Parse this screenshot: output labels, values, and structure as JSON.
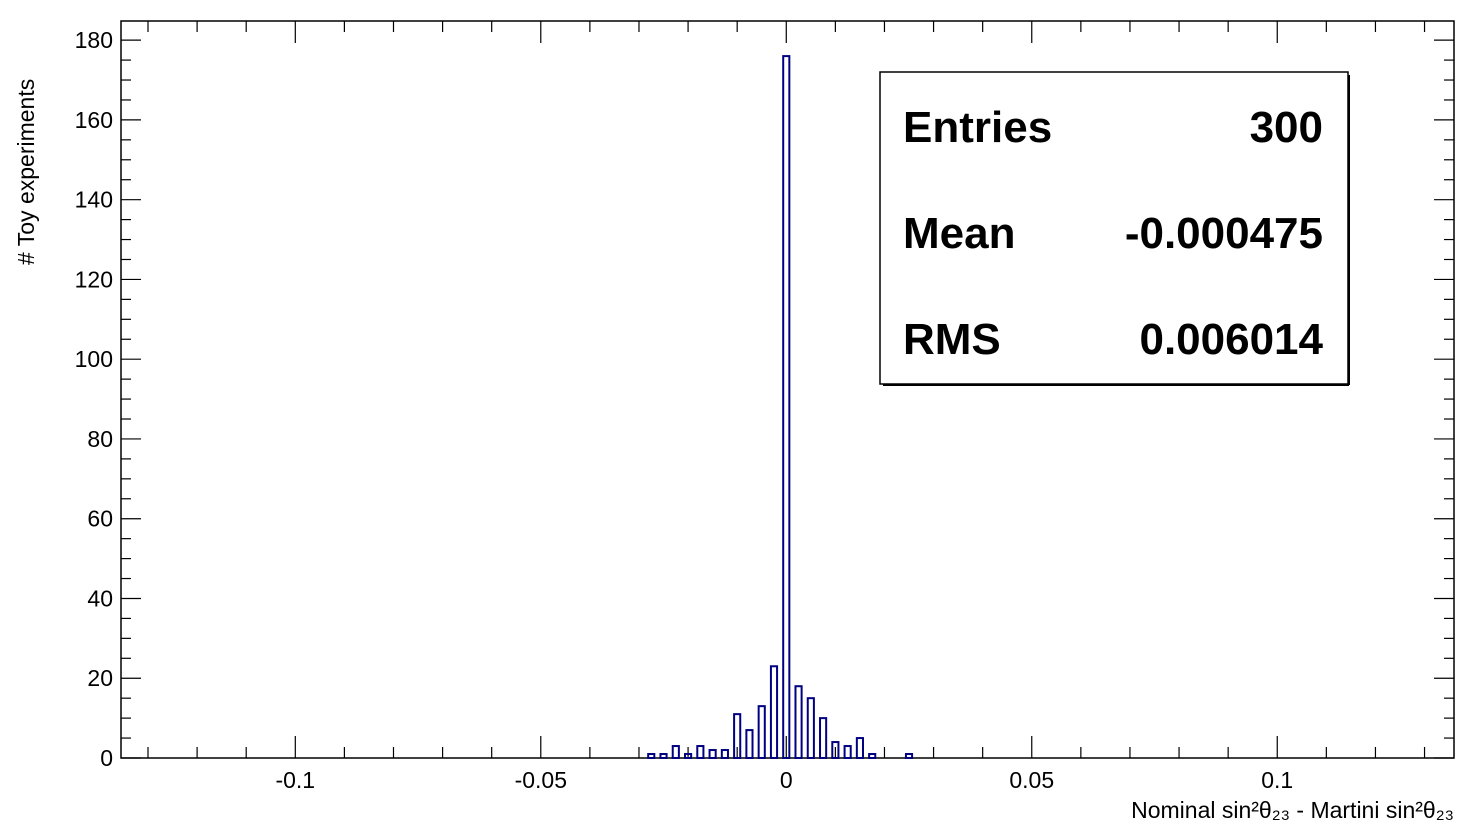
{
  "chart_data": {
    "type": "histogram",
    "xlabel": "Nominal sin²θ₂₃ - Martini sin²θ₂₃",
    "ylabel": "# Toy experiments",
    "bins": [
      -0.02875,
      -0.02625,
      -0.02375,
      -0.02125,
      -0.01875,
      -0.01625,
      -0.01375,
      -0.01125,
      -0.00875,
      -0.00625,
      -0.00375,
      -0.00125,
      0.00125,
      0.00375,
      0.00625,
      0.00875,
      0.01125,
      0.01375,
      0.01625,
      0.01875,
      0.02125,
      0.02375,
      0.02625
    ],
    "values": [
      1,
      1,
      3,
      1,
      3,
      2,
      2,
      11,
      7,
      13,
      23,
      176,
      18,
      15,
      10,
      4,
      3,
      5,
      1,
      0,
      0,
      1
    ],
    "color": "#000080",
    "xlim": [
      -0.1355,
      0.136
    ],
    "xticks": [
      -0.1,
      -0.05,
      0,
      0.05,
      0.1
    ],
    "ylim": [
      0,
      184.8
    ],
    "yticks": [
      0,
      20,
      40,
      60,
      80,
      100,
      120,
      140,
      160,
      180
    ],
    "stats": [
      {
        "label": "Entries",
        "value": 300
      },
      {
        "label": "Mean",
        "value": -0.000475
      },
      {
        "label": "RMS",
        "value": 0.006014
      }
    ]
  }
}
